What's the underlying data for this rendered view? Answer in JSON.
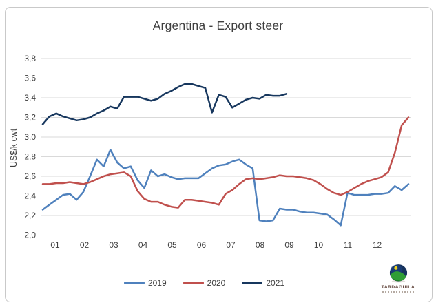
{
  "chart_data": {
    "type": "line",
    "title": "Argentina - Export steer",
    "ylabel": "US$/k cwt",
    "ylim": [
      2.0,
      3.8
    ],
    "ytick_step": 0.2,
    "decimal_separator": ",",
    "y_tick_labels": [
      "2,0",
      "2,2",
      "2,4",
      "2,6",
      "2,8",
      "3,0",
      "3,2",
      "3,4",
      "3,6",
      "3,8"
    ],
    "x_tick_labels": [
      "01",
      "02",
      "03",
      "04",
      "05",
      "06",
      "07",
      "08",
      "09",
      "10",
      "11",
      "12"
    ],
    "grid": "horizontal",
    "gridline_color": "#d9d9d9",
    "axis_text_color": "#3f3f3f",
    "legend_position": "bottom-center",
    "n_slots": 55,
    "series": [
      {
        "name": "2019",
        "color": "#4f81bd",
        "values": [
          2.26,
          2.31,
          2.36,
          2.41,
          2.42,
          2.36,
          2.44,
          2.6,
          2.77,
          2.7,
          2.87,
          2.74,
          2.68,
          2.7,
          2.56,
          2.48,
          2.66,
          2.6,
          2.62,
          2.59,
          2.57,
          2.58,
          2.58,
          2.58,
          2.63,
          2.68,
          2.71,
          2.72,
          2.75,
          2.77,
          2.72,
          2.68,
          2.15,
          2.14,
          2.15,
          2.27,
          2.26,
          2.26,
          2.24,
          2.23,
          2.23,
          2.22,
          2.21,
          2.16,
          2.1,
          2.43,
          2.41,
          2.41,
          2.41,
          2.42,
          2.42,
          2.43,
          2.5,
          2.46,
          2.52
        ]
      },
      {
        "name": "2020",
        "color": "#c0504d",
        "values": [
          2.52,
          2.52,
          2.53,
          2.53,
          2.54,
          2.53,
          2.52,
          2.54,
          2.57,
          2.6,
          2.62,
          2.63,
          2.64,
          2.6,
          2.45,
          2.37,
          2.34,
          2.34,
          2.31,
          2.29,
          2.28,
          2.36,
          2.36,
          2.35,
          2.34,
          2.33,
          2.31,
          2.42,
          2.46,
          2.52,
          2.57,
          2.58,
          2.57,
          2.58,
          2.59,
          2.61,
          2.6,
          2.6,
          2.59,
          2.58,
          2.56,
          2.52,
          2.47,
          2.43,
          2.41,
          2.44,
          2.48,
          2.52,
          2.55,
          2.57,
          2.59,
          2.64,
          2.84,
          3.12,
          3.2
        ]
      },
      {
        "name": "2021",
        "color": "#17375e",
        "values": [
          3.13,
          3.21,
          3.24,
          3.21,
          3.19,
          3.17,
          3.18,
          3.2,
          3.24,
          3.27,
          3.31,
          3.29,
          3.41,
          3.41,
          3.41,
          3.39,
          3.37,
          3.39,
          3.44,
          3.47,
          3.51,
          3.54,
          3.54,
          3.52,
          3.5,
          3.25,
          3.43,
          3.41,
          3.3,
          3.34,
          3.38,
          3.4,
          3.39,
          3.43,
          3.42,
          3.42,
          3.44
        ]
      }
    ]
  },
  "logo": {
    "text": "TARDAGUILA"
  }
}
